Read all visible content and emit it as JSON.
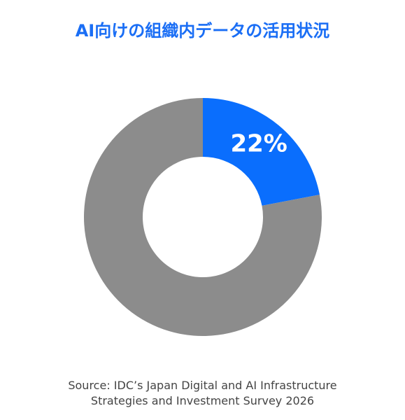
{
  "chart_data": {
    "type": "pie",
    "title": "AI向けの組織内データの活用状況",
    "slices": [
      {
        "label": "22%",
        "value": 22,
        "color": "#0a6efd"
      },
      {
        "label": "",
        "value": 78,
        "color": "#8c8c8c"
      }
    ],
    "donut": true
  },
  "source": {
    "line1": "Source: IDC’s Japan Digital and AI Infrastructure",
    "line2": "Strategies and Investment Survey 2026"
  }
}
